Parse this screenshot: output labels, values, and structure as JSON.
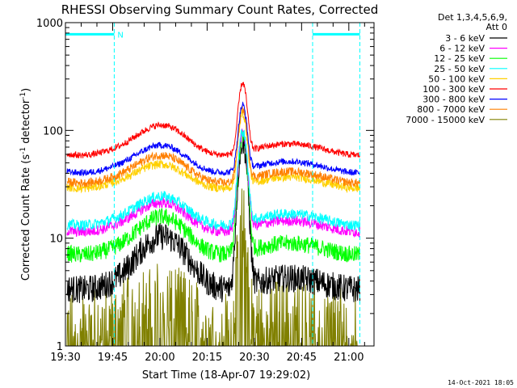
{
  "chart_data": {
    "type": "line",
    "title": "RHESSI Observing Summary Count Rates, Corrected",
    "xlabel": "Start Time (18-Apr-07 19:29:02)",
    "ylabel_parts": [
      "Corrected Count Rate (s",
      "-1",
      " detector",
      "-1",
      ")"
    ],
    "yscale": "log",
    "ylim": [
      1,
      1000
    ],
    "xlim_min": [
      1170,
      1268
    ],
    "y_ticks": [
      {
        "value": 1,
        "label": "1"
      },
      {
        "value": 10,
        "label": "10"
      },
      {
        "value": 100,
        "label": "100"
      },
      {
        "value": 1000,
        "label": "1000"
      }
    ],
    "x_ticks": [
      {
        "value": 1170,
        "label": "19:30"
      },
      {
        "value": 1185,
        "label": "19:45"
      },
      {
        "value": 1200,
        "label": "20:00"
      },
      {
        "value": 1215,
        "label": "20:15"
      },
      {
        "value": 1230,
        "label": "20:30"
      },
      {
        "value": 1245,
        "label": "20:45"
      },
      {
        "value": 1260,
        "label": "21:00"
      }
    ],
    "legend_header": [
      "Det 1,3,4,5,6,9,",
      "Att 0"
    ],
    "legend_placement": "right",
    "night_markers": {
      "color": "#00ffff",
      "bar_level": 780,
      "label": "N",
      "segments": [
        [
          1170,
          1185.5
        ],
        [
          1248.5,
          1263.5
        ]
      ]
    },
    "series": [
      {
        "name": "3 - 6 keV",
        "color": "#000000",
        "baseline": 3.8,
        "flare_peak": 80,
        "gradual": 10,
        "noise": 0.13
      },
      {
        "name": "6 - 12 keV",
        "color": "#ff00ff",
        "baseline": 13,
        "flare_peak": 95,
        "gradual": 20,
        "noise": 0.05
      },
      {
        "name": "12 - 25 keV",
        "color": "#00ff00",
        "baseline": 8,
        "flare_peak": 88,
        "gradual": 15,
        "noise": 0.08
      },
      {
        "name": "25 - 50 keV",
        "color": "#00ffff",
        "baseline": 15,
        "flare_peak": 100,
        "gradual": 23,
        "noise": 0.05
      },
      {
        "name": "50 - 100 keV",
        "color": "#ffd000",
        "baseline": 33,
        "flare_peak": 145,
        "gradual": 45,
        "noise": 0.04
      },
      {
        "name": "100 - 300 keV",
        "color": "#ff0000",
        "baseline": 67,
        "flare_peak": 280,
        "gradual": 105,
        "noise": 0.03
      },
      {
        "name": "300 - 800 keV",
        "color": "#0000ff",
        "baseline": 46,
        "flare_peak": 175,
        "gradual": 68,
        "noise": 0.03
      },
      {
        "name": "800 - 7000 keV",
        "color": "#ff8000",
        "baseline": 37,
        "flare_peak": 160,
        "gradual": 55,
        "noise": 0.04
      },
      {
        "name": "7000 - 15000 keV",
        "color": "#808000",
        "baseline": 1.7,
        "flare_peak": 14,
        "gradual": 2.6,
        "noise": 0.35
      }
    ],
    "flare_peak_time": 1226.3,
    "gradual_peak_time": 1201
  },
  "footer_timestamp": "14-Oct-2021 18:05"
}
